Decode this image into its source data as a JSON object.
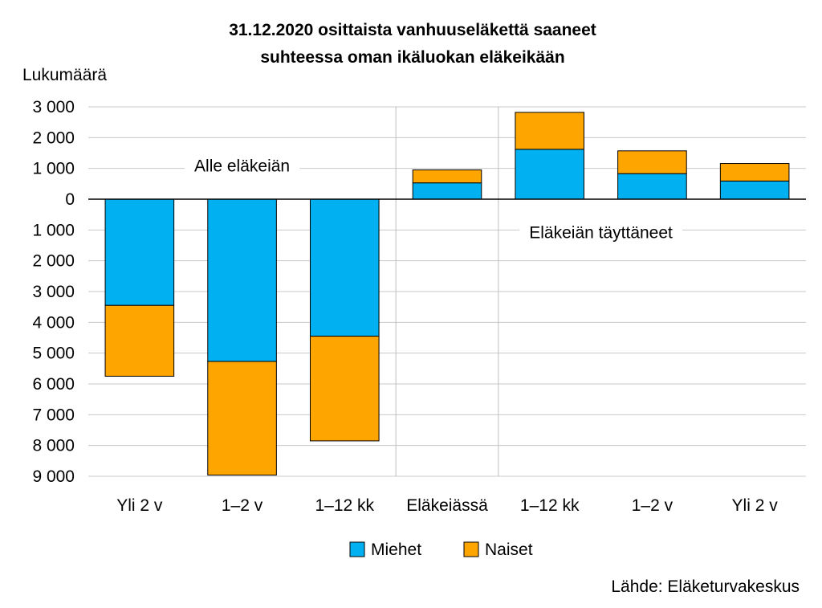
{
  "chart_data": {
    "type": "bar",
    "stacked": true,
    "title_lines": [
      "31.12.2020 osittaista vanhuuseläkettä saaneet",
      "suhteessa oman ikäluokan eläkeikään"
    ],
    "ylabel": "Lukumäärä",
    "categories": [
      "Yli 2 v",
      "1–2 v",
      "1–12 kk",
      "Eläkeiässä",
      "1–12 kk",
      "1–2 v",
      "Yli 2 v"
    ],
    "y_ticks": [
      3000,
      2000,
      1000,
      0,
      -1000,
      -2000,
      -3000,
      -4000,
      -5000,
      -6000,
      -7000,
      -8000,
      -9000
    ],
    "y_tick_labels": [
      "3 000",
      "2 000",
      "1 000",
      "0",
      "1 000",
      "2 000",
      "3 000",
      "4 000",
      "5 000",
      "6 000",
      "7 000",
      "8 000",
      "9 000"
    ],
    "ylim": [
      -9000,
      3000
    ],
    "series": [
      {
        "name": "Miehet",
        "color": "#00B0F0",
        "values": [
          -3450,
          -5270,
          -4450,
          530,
          1620,
          830,
          590
        ]
      },
      {
        "name": "Naiset",
        "color": "#FFA500",
        "values": [
          -2300,
          -3690,
          -3400,
          420,
          1200,
          740,
          570
        ]
      }
    ],
    "annotations": [
      {
        "text": "Alle eläkeiän"
      },
      {
        "text": "Eläkeiän täyttäneet"
      }
    ],
    "legend_position": "bottom",
    "grid": true
  },
  "source": "Lähde: Eläketurvakeskus"
}
